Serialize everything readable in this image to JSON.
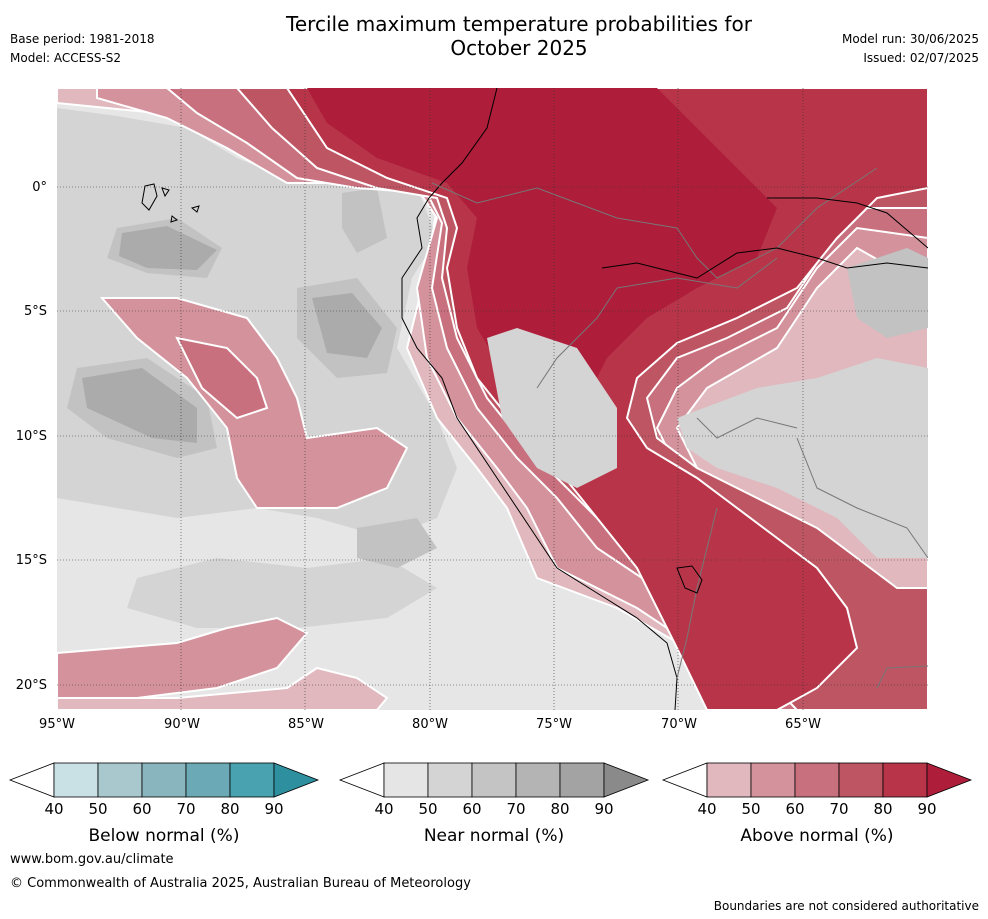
{
  "header": {
    "title_line1": "Tercile maximum temperature probabilities for",
    "title_line2": "October 2025",
    "base_period": "Base period: 1981-2018",
    "model": "Model: ACCESS-S2",
    "model_run": "Model run: 30/06/2025",
    "issued": "Issued: 02/07/2025"
  },
  "map": {
    "lat_labels": [
      "0°",
      "5°S",
      "10°S",
      "15°S",
      "20°S"
    ],
    "lon_labels": [
      "95°W",
      "90°W",
      "85°W",
      "80°W",
      "75°W",
      "70°W",
      "65°W"
    ],
    "colors": {
      "ocean_near": "#e6e6e6",
      "near_50": "#d4d4d4",
      "near_60": "#c2c2c2",
      "near_70": "#ababab",
      "above_40": "#e0b8be",
      "above_50": "#d4939c",
      "above_60": "#c8707d",
      "above_70": "#be5563",
      "above_80": "#b83549",
      "above_90": "#ae1d3a"
    }
  },
  "legends": [
    {
      "label": "Below normal (%)",
      "ticks": [
        "40",
        "50",
        "60",
        "70",
        "80",
        "90"
      ],
      "colors": [
        "#c9e1e5",
        "#a8c8ce",
        "#89b5bf",
        "#6aa9b5",
        "#48a2b0",
        "#2e8f9f"
      ]
    },
    {
      "label": "Near normal (%)",
      "ticks": [
        "40",
        "50",
        "60",
        "70",
        "80",
        "90"
      ],
      "colors": [
        "#e5e5e5",
        "#d4d4d4",
        "#c4c4c4",
        "#b4b4b4",
        "#a3a3a3",
        "#8a8a8a"
      ]
    },
    {
      "label": "Above normal (%)",
      "ticks": [
        "40",
        "50",
        "60",
        "70",
        "80",
        "90"
      ],
      "colors": [
        "#e0b8be",
        "#d4939c",
        "#c8707d",
        "#be5563",
        "#b83549",
        "#ae1d3a"
      ]
    }
  ],
  "footer": {
    "website": "www.bom.gov.au/climate",
    "copyright": "© Commonwealth of Australia 2025, Australian Bureau of Meteorology",
    "disclaimer": "Boundaries are not considered authoritative"
  }
}
